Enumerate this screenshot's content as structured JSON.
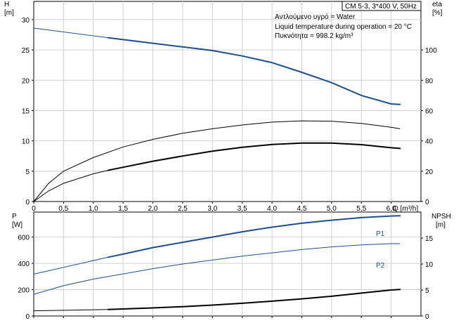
{
  "header": {
    "model": "CM 5-3, 3*400 V, 50Hz",
    "notes": [
      "Αντλούμενο υγρό = Water",
      "Liquid temperature during operation = 20 °C",
      "Πυκνότητα = 998.2 kg/m³"
    ]
  },
  "chart_data": [
    {
      "type": "line",
      "xlabel": "Q [m³/h]",
      "xlim": [
        0,
        6.5
      ],
      "xticks": [
        0,
        0.5,
        1,
        1.5,
        2,
        2.5,
        3,
        3.5,
        4,
        4.5,
        5,
        5.5,
        6
      ],
      "xtick_labels": [
        "0",
        "0,5",
        "1,0",
        "1,5",
        "2,0",
        "2,5",
        "3,0",
        "3,5",
        "4,0",
        "4,5",
        "5,0",
        "5,5",
        "6,0"
      ],
      "y_left": {
        "label": [
          "H",
          "[m]"
        ],
        "lim": [
          0,
          33
        ],
        "ticks": [
          0,
          5,
          10,
          15,
          20,
          25,
          30
        ]
      },
      "y_right": {
        "label": [
          "eta",
          "[%]"
        ],
        "lim": [
          0,
          132
        ],
        "ticks": [
          0,
          20,
          40,
          60,
          80,
          100
        ]
      },
      "grid": true,
      "series": [
        {
          "axis": "left",
          "colour": "#1d4f8c",
          "x": [
            0,
            1.25,
            1.5,
            2,
            2.5,
            3,
            3.5,
            4,
            4.5,
            5,
            5.5,
            6,
            6.15
          ],
          "values": [
            28.6,
            27.0,
            26.7,
            26.1,
            25.5,
            24.9,
            24.0,
            22.9,
            21.3,
            19.6,
            17.5,
            16.1,
            16.0
          ],
          "dashed_to": 1.25,
          "width": 2
        },
        {
          "axis": "right",
          "colour": "#000000",
          "x": [
            0,
            0.25,
            0.5,
            1,
            1.5,
            2,
            2.5,
            3,
            3.5,
            4,
            4.5,
            5,
            5.5,
            6,
            6.15
          ],
          "values": [
            0,
            12,
            20,
            29,
            36,
            41,
            45,
            48,
            50.5,
            52.4,
            53.2,
            53.0,
            51.5,
            49,
            48
          ],
          "width": 1
        },
        {
          "axis": "right",
          "colour": "#000000",
          "x": [
            0,
            0.25,
            0.5,
            1,
            1.25,
            1.5,
            2,
            2.5,
            3,
            3.5,
            4,
            4.5,
            5,
            5.5,
            6,
            6.15
          ],
          "values": [
            0,
            7,
            12,
            18.3,
            20.6,
            22.6,
            26.6,
            30.0,
            33.2,
            35.8,
            37.6,
            38.6,
            38.6,
            37.5,
            35.5,
            35
          ],
          "dashed_to": 1.25,
          "width": 2
        }
      ]
    },
    {
      "type": "line",
      "xlim": [
        0,
        6.5
      ],
      "y_left": {
        "label": [
          "P",
          "[W]"
        ],
        "lim": [
          0,
          790
        ],
        "ticks": [
          0,
          200,
          400,
          600
        ]
      },
      "y_right": {
        "label": [
          "NPSH",
          "[m]"
        ],
        "lim": [
          0,
          20
        ],
        "ticks": [
          0,
          5,
          10,
          15
        ]
      },
      "grid": true,
      "series": [
        {
          "name": "P1",
          "axis": "left",
          "colour": "#1d4f8c",
          "x": [
            0,
            1.25,
            1.5,
            2,
            2.5,
            3,
            3.5,
            4,
            4.5,
            5,
            5.5,
            6,
            6.15
          ],
          "values": [
            318,
            447,
            470,
            520,
            560,
            600,
            640,
            675,
            705,
            728,
            748,
            760,
            762
          ],
          "dashed_to": 1.25,
          "width": 2
        },
        {
          "name": "P2",
          "axis": "left",
          "colour": "#1d4f8c",
          "x": [
            0,
            0.5,
            1,
            1.5,
            2,
            2.5,
            3,
            3.5,
            4,
            4.5,
            5,
            5.5,
            6,
            6.15
          ],
          "values": [
            165,
            230,
            280,
            320,
            360,
            395,
            425,
            455,
            480,
            505,
            525,
            540,
            550,
            550
          ],
          "width": 1
        },
        {
          "axis": "right",
          "colour": "#000000",
          "x": [
            0,
            1.25,
            1.5,
            2,
            2.5,
            3,
            3.5,
            4,
            4.5,
            5,
            5.5,
            6,
            6.15
          ],
          "values": [
            1.0,
            1.25,
            1.35,
            1.55,
            1.8,
            2.1,
            2.45,
            2.85,
            3.3,
            3.8,
            4.4,
            5.0,
            5.1
          ],
          "dashed_to": 1.25,
          "width": 2
        }
      ]
    }
  ]
}
